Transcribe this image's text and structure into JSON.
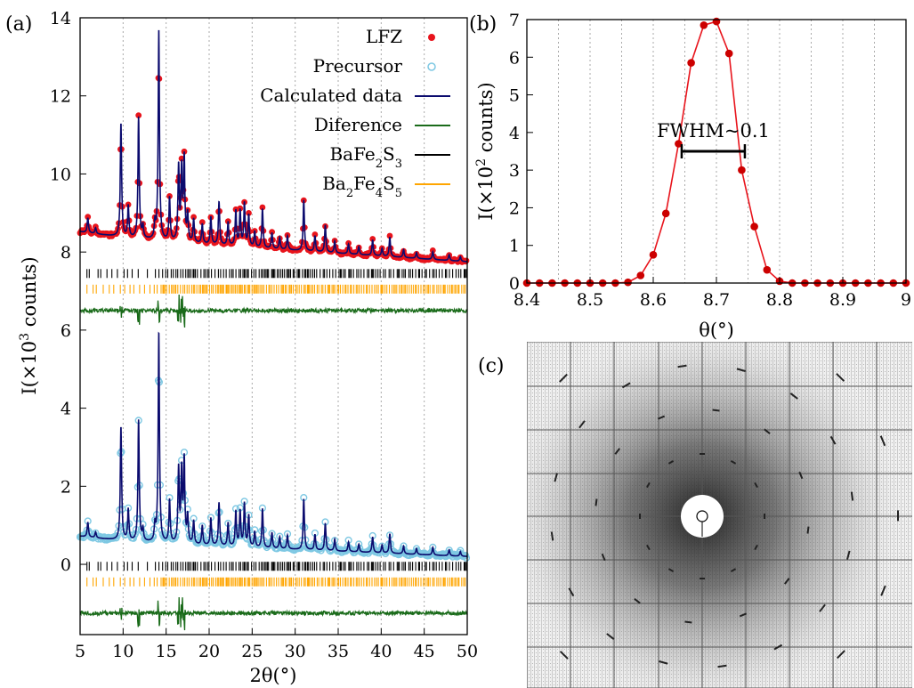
{
  "panel_labels": {
    "a": "(a)",
    "b": "(b)",
    "c": "(c)"
  },
  "legend": {
    "lfz": "LFZ",
    "precursor": "Precursor",
    "calculated": "Calculated data",
    "difference": "Diference",
    "phase1": {
      "base": "BaFe",
      "s1": "2",
      "mid": "S",
      "s2": "3"
    },
    "phase2": {
      "pre": "Ba",
      "s0": "2",
      "base": "Fe",
      "s1": "4",
      "mid": "S",
      "s2": "5"
    }
  },
  "colors": {
    "lfz": "#e8141c",
    "precursor": "#7ec8e3",
    "calculated": "#0b0b6e",
    "difference": "#1a6b1a",
    "phase1": "#000000",
    "phase2": "#ffa500",
    "fwhm_curve": "#e8141c",
    "fwhm_points": "#cc0000"
  },
  "chart_data": [
    {
      "type": "line",
      "panel": "(a)",
      "xlabel": "2θ(°)",
      "ylabel": {
        "pre": "I(×10",
        "sup": "3",
        "post": " counts)"
      },
      "xlim": [
        5,
        50
      ],
      "ylim": [
        -1.8,
        14
      ],
      "xticks": [
        5,
        10,
        15,
        20,
        25,
        30,
        35,
        40,
        45,
        50
      ],
      "yticks": [
        0,
        2,
        4,
        6,
        8,
        10,
        12,
        14
      ],
      "grid_x": true,
      "legend_position": "top-right",
      "peaks": [
        [
          5.9,
          0.38
        ],
        [
          6.8,
          0.15
        ],
        [
          9.75,
          2.9
        ],
        [
          10.6,
          0.8
        ],
        [
          11.8,
          3.1
        ],
        [
          12.3,
          0.3
        ],
        [
          13.7,
          0.4
        ],
        [
          14.15,
          5.4
        ],
        [
          15.4,
          1.1
        ],
        [
          16.45,
          1.9
        ],
        [
          16.8,
          1.8
        ],
        [
          17.1,
          2.1
        ],
        [
          17.5,
          0.7
        ],
        [
          18.2,
          0.6
        ],
        [
          19.2,
          0.5
        ],
        [
          20.2,
          0.7
        ],
        [
          21.15,
          1.1
        ],
        [
          22.2,
          0.6
        ],
        [
          23.1,
          0.9
        ],
        [
          23.6,
          0.9
        ],
        [
          24.1,
          1.1
        ],
        [
          24.6,
          0.8
        ],
        [
          25.3,
          0.4
        ],
        [
          26.2,
          1.0
        ],
        [
          27.3,
          0.4
        ],
        [
          28.2,
          0.3
        ],
        [
          29.1,
          0.35
        ],
        [
          31.0,
          1.3
        ],
        [
          32.3,
          0.4
        ],
        [
          33.5,
          0.7
        ],
        [
          34.6,
          0.3
        ],
        [
          36.2,
          0.25
        ],
        [
          37.4,
          0.2
        ],
        [
          39.0,
          0.4
        ],
        [
          40.1,
          0.2
        ],
        [
          41.0,
          0.5
        ],
        [
          42.6,
          0.2
        ],
        [
          44.1,
          0.15
        ],
        [
          46.0,
          0.2
        ],
        [
          47.9,
          0.15
        ],
        [
          49.2,
          0.12
        ]
      ],
      "series": [
        {
          "name": "LFZ",
          "baseline": [
            8.4,
            7.75
          ],
          "peak_scale": 1.0
        },
        {
          "name": "Precursor",
          "baseline": [
            0.6,
            0.2
          ],
          "peak_scale": 1.0
        },
        {
          "name": "Diference",
          "offsets": [
            6.5,
            -1.25
          ]
        }
      ],
      "reflection_rows": [
        {
          "name": "BaFe2S3",
          "y": [
            7.45,
            -0.05
          ]
        },
        {
          "name": "Ba2Fe4S5",
          "y": [
            7.05,
            -0.45
          ]
        }
      ]
    },
    {
      "type": "line",
      "panel": "(b)",
      "xlabel": "θ(°)",
      "ylabel": {
        "pre": "I(×10",
        "sup": "2",
        "post": " counts)"
      },
      "xlim": [
        8.4,
        9.0
      ],
      "ylim": [
        0,
        7
      ],
      "xticks": [
        8.4,
        8.5,
        8.6,
        8.7,
        8.8,
        8.9,
        9.0
      ],
      "xtick_labels": [
        "8.4",
        "8.5",
        "8.6",
        "8.7",
        "8.8",
        "8.9",
        "9"
      ],
      "yticks": [
        0,
        1,
        2,
        3,
        4,
        5,
        6,
        7
      ],
      "grid_x": true,
      "x": [
        8.4,
        8.42,
        8.44,
        8.46,
        8.48,
        8.5,
        8.52,
        8.54,
        8.56,
        8.58,
        8.6,
        8.62,
        8.64,
        8.66,
        8.68,
        8.7,
        8.72,
        8.74,
        8.76,
        8.78,
        8.8,
        8.82,
        8.84,
        8.86,
        8.88,
        8.9,
        8.92,
        8.94,
        8.96,
        8.98,
        9.0
      ],
      "values": [
        0,
        0,
        0,
        0,
        0,
        0,
        0,
        0,
        0.02,
        0.2,
        0.75,
        1.85,
        3.7,
        5.85,
        6.85,
        6.95,
        6.1,
        3.0,
        1.5,
        0.35,
        0.05,
        0,
        0,
        0,
        0,
        0,
        0,
        0,
        0,
        0,
        0
      ],
      "annotation": {
        "text": "FWHM~0.1",
        "x_range": [
          8.645,
          8.745
        ],
        "y": 3.5
      }
    }
  ]
}
